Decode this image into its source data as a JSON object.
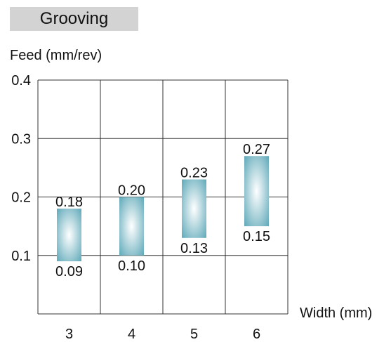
{
  "section_title": "Grooving",
  "chart_data": {
    "type": "range-bar",
    "ylabel": "Feed (mm/rev)",
    "xlabel": "Width (mm)",
    "categories": [
      "3",
      "4",
      "5",
      "6"
    ],
    "y_ticks": [
      "0.4",
      "0.3",
      "0.2",
      "0.1"
    ],
    "ylim": [
      0.0,
      0.4
    ],
    "grid": true,
    "ranges": [
      {
        "category": "3",
        "low": 0.09,
        "high": 0.18,
        "low_label": "0.09",
        "high_label": "0.18"
      },
      {
        "category": "4",
        "low": 0.1,
        "high": 0.2,
        "low_label": "0.10",
        "high_label": "0.20"
      },
      {
        "category": "5",
        "low": 0.13,
        "high": 0.23,
        "low_label": "0.13",
        "high_label": "0.23"
      },
      {
        "category": "6",
        "low": 0.15,
        "high": 0.27,
        "low_label": "0.15",
        "high_label": "0.27"
      }
    ],
    "bar_color_center": "#ffffff",
    "bar_color_edge": "#5fa9b9",
    "grid_color": "#333333"
  }
}
